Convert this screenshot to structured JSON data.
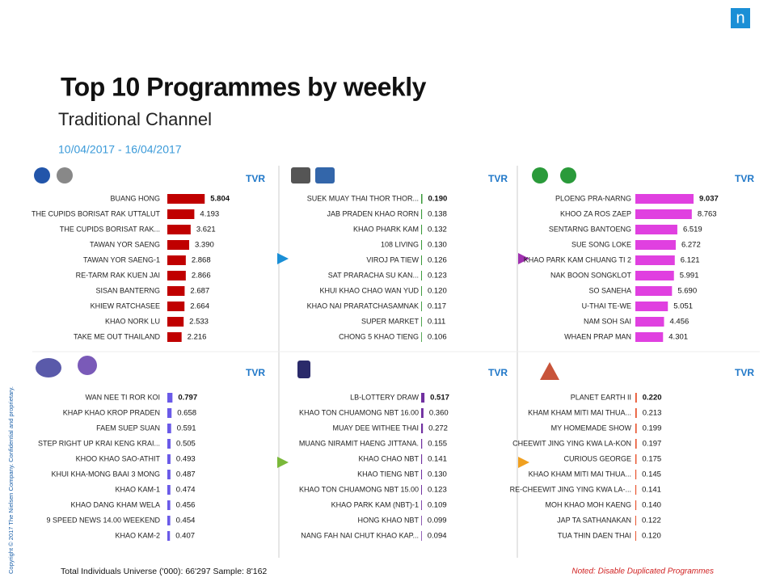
{
  "slide": {
    "title": "Top 10 Programmes by weekly",
    "subtitle": "Traditional Channel",
    "date": "10/04/2017 - 16/04/2017",
    "footer": "Total Individuals Universe ('000): 66'297 Sample: 8'162",
    "note": "Noted: Disable Duplicated Programmes",
    "copyright": "Copyright © 2017 The Nielsen Company. Confidential and proprietary.",
    "logo": "n"
  },
  "chart_data": [
    {
      "type": "bar",
      "title": "TVR",
      "color": "#c00000",
      "categories": [
        "BUANG HONG",
        "THE CUPIDS BORISAT RAK UTTALUT",
        "THE CUPIDS BORISAT RAK...",
        "TAWAN YOR SAENG",
        "TAWAN YOR SAENG-1",
        "RE-TARM RAK KUEN JAI",
        "SISAN BANTERNG",
        "KHIEW RATCHASEE",
        "KHAO NORK LU",
        "TAKE ME OUT THAILAND"
      ],
      "values": [
        5.804,
        4.193,
        3.621,
        3.39,
        2.868,
        2.866,
        2.687,
        2.664,
        2.533,
        2.216
      ],
      "value_labels": [
        "5.804",
        "4.193",
        "3.621",
        "3.390",
        "2.868",
        "2.866",
        "2.687",
        "2.664",
        "2.533",
        "2.216"
      ]
    },
    {
      "type": "bar",
      "title": "TVR",
      "color": "#3a9a3a",
      "categories": [
        "SUEK MUAY THAI THOR THOR...",
        "JAB PRADEN KHAO RORN",
        "KHAO PHARK KAM",
        "108 LIVING",
        "VIROJ PA TIEW",
        "SAT PRARACHA SU KAN...",
        "KHUI KHAO CHAO WAN YUD",
        "KHAO NAI PRARATCHASAMNAK",
        "SUPER MARKET",
        "CHONG 5 KHAO TIENG"
      ],
      "values": [
        0.19,
        0.138,
        0.132,
        0.13,
        0.126,
        0.123,
        0.12,
        0.117,
        0.111,
        0.106
      ],
      "value_labels": [
        "0.190",
        "0.138",
        "0.132",
        "0.130",
        "0.126",
        "0.123",
        "0.120",
        "0.117",
        "0.111",
        "0.106"
      ]
    },
    {
      "type": "bar",
      "title": "TVR",
      "color": "#e040e0",
      "categories": [
        "PLOENG PRA-NARNG",
        "KHOO ZA ROS ZAEP",
        "SENTARNG BANTOENG",
        "SUE SONG LOKE",
        "KHAO PARK KAM CHUANG TI 2",
        "NAK BOON SONGKLOT",
        "SO SANEHA",
        "U-THAI TE-WE",
        "NAM SOH SAI",
        "WHAEN PRAP MAN"
      ],
      "values": [
        9.037,
        8.763,
        6.519,
        6.272,
        6.121,
        5.991,
        5.69,
        5.051,
        4.456,
        4.301
      ],
      "value_labels": [
        "9.037",
        "8.763",
        "6.519",
        "6.272",
        "6.121",
        "5.991",
        "5.690",
        "5.051",
        "4.456",
        "4.301"
      ]
    },
    {
      "type": "bar",
      "title": "TVR",
      "color": "#6a5ae8",
      "categories": [
        "WAN NEE TI ROR KOI",
        "KHAP KHAO KROP PRADEN",
        "FAEM SUEP SUAN",
        "STEP RIGHT UP KRAI KENG KRAI...",
        "KHOO KHAO SAO-ATHIT",
        "KHUI KHA-MONG BAAI 3 MONG",
        "KHAO KAM-1",
        "KHAO DANG KHAM WELA",
        "9 SPEED NEWS 14.00 WEEKEND",
        "KHAO KAM-2"
      ],
      "values": [
        0.797,
        0.658,
        0.591,
        0.505,
        0.493,
        0.487,
        0.474,
        0.456,
        0.454,
        0.407
      ],
      "value_labels": [
        "0.797",
        "0.658",
        "0.591",
        "0.505",
        "0.493",
        "0.487",
        "0.474",
        "0.456",
        "0.454",
        "0.407"
      ]
    },
    {
      "type": "bar",
      "title": "TVR",
      "color": "#7030a0",
      "categories": [
        "LB-LOTTERY DRAW",
        "KHAO TON CHUAMONG NBT 16.00",
        "MUAY DEE WITHEE THAI",
        "MUANG NIRAMIT HAENG JITTANA.",
        "KHAO CHAO NBT",
        "KHAO TIENG NBT",
        "KHAO TON CHUAMONG NBT 15.00",
        "KHAO PARK KAM (NBT)-1",
        "HONG KHAO NBT",
        "NANG FAH NAI CHUT KHAO KAP..."
      ],
      "values": [
        0.517,
        0.36,
        0.272,
        0.155,
        0.141,
        0.13,
        0.123,
        0.109,
        0.099,
        0.094
      ],
      "value_labels": [
        "0.517",
        "0.360",
        "0.272",
        "0.155",
        "0.141",
        "0.130",
        "0.123",
        "0.109",
        "0.099",
        "0.094"
      ]
    },
    {
      "type": "bar",
      "title": "TVR",
      "color": "#e8502a",
      "categories": [
        "PLANET EARTH II",
        "KHAM KHAM MITI MAI THUA...",
        "MY HOMEMADE SHOW",
        "CHEEWIT JING YING KWA LA-KON",
        "CURIOUS GEORGE",
        "KHAO KHAM MITI MAI THUA...",
        "RE-CHEEWIT JING YING KWA LA-...",
        "MOH KHAO MOH KAENG",
        "JAP TA SATHANAKAN",
        "TUA THIN DAEN THAI"
      ],
      "values": [
        0.22,
        0.213,
        0.199,
        0.197,
        0.175,
        0.145,
        0.141,
        0.14,
        0.122,
        0.12
      ],
      "value_labels": [
        "0.220",
        "0.213",
        "0.199",
        "0.197",
        "0.175",
        "0.145",
        "0.141",
        "0.140",
        "0.122",
        "0.120"
      ]
    }
  ]
}
